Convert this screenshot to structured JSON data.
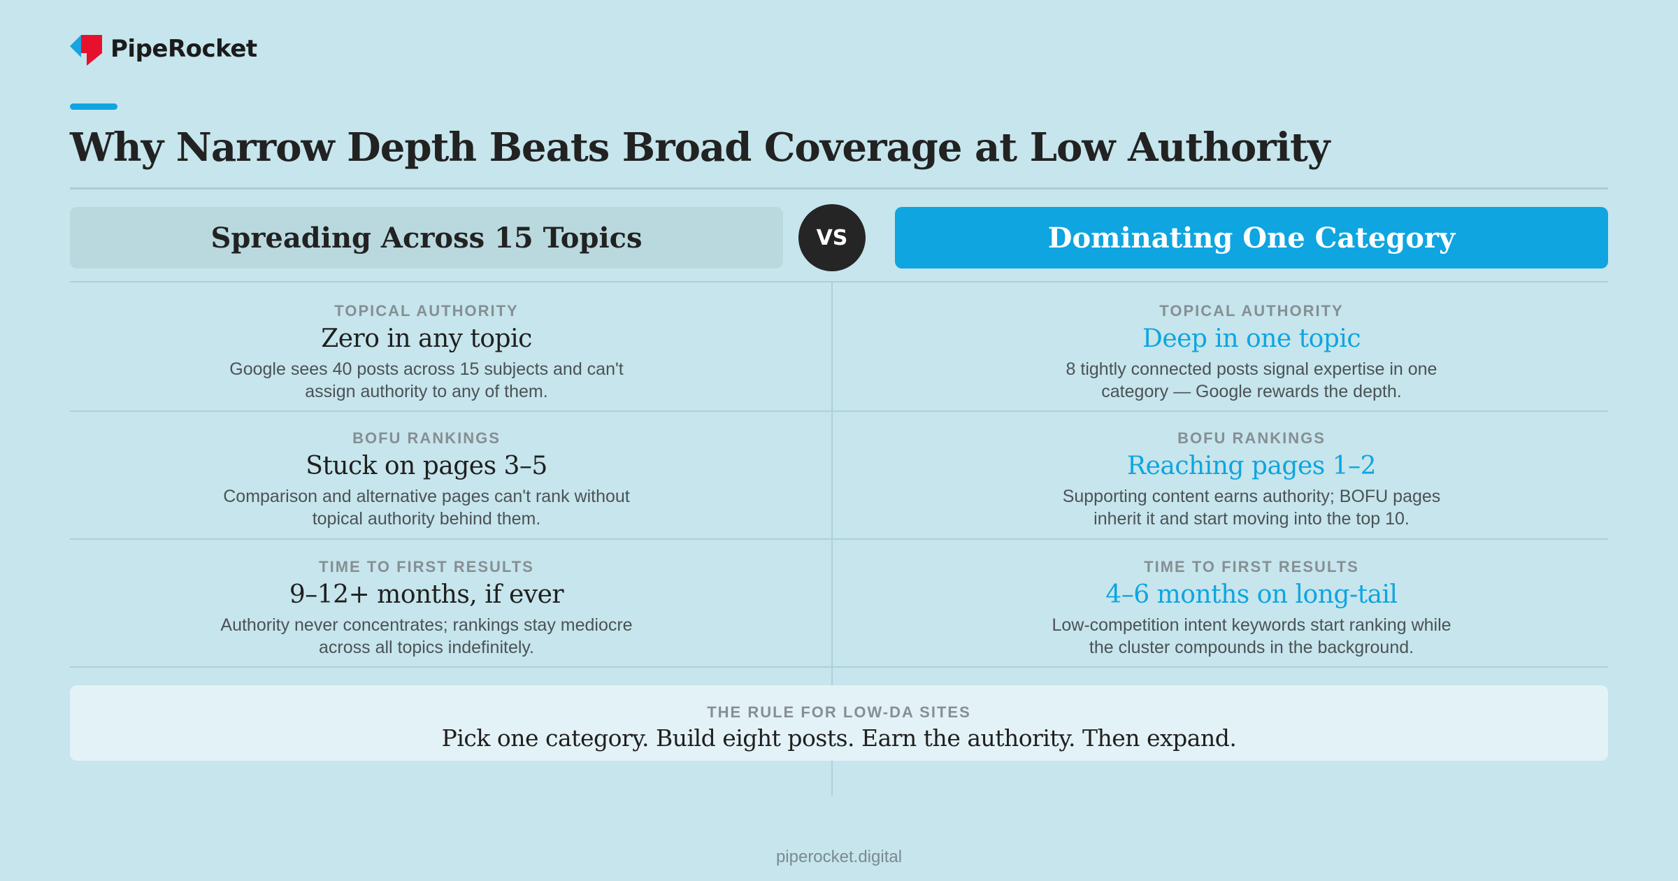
{
  "brand": {
    "name": "PipeRocket",
    "colors": {
      "accent": "#0ea5e0",
      "logo_red": "#e8112d",
      "logo_blue": "#1aa3df"
    }
  },
  "title": "Why Narrow Depth Beats Broad Coverage at Low Authority",
  "columns": {
    "left_header": "Spreading Across 15 Topics",
    "vs_label": "VS",
    "right_header": "Dominating One Category"
  },
  "rows": [
    {
      "label": "TOPICAL AUTHORITY",
      "left": {
        "value": "Zero in any topic",
        "desc": "Google sees 40 posts across 15 subjects and can't assign authority to any of them."
      },
      "right": {
        "value": "Deep in one topic",
        "desc": "8 tightly connected posts signal expertise in one category — Google rewards the depth."
      }
    },
    {
      "label": "BOFU RANKINGS",
      "left": {
        "value": "Stuck on pages 3–5",
        "desc": "Comparison and alternative pages can't rank without topical authority behind them."
      },
      "right": {
        "value": "Reaching pages 1–2",
        "desc": "Supporting content earns authority; BOFU pages inherit it and start moving into the top 10."
      }
    },
    {
      "label": "TIME TO FIRST RESULTS",
      "left": {
        "value": "9–12+ months, if ever",
        "desc": "Authority never concentrates; rankings stay mediocre across all topics indefinitely."
      },
      "right": {
        "value": "4–6 months on long-tail",
        "desc": "Low-competition intent keywords start ranking while the cluster compounds in the background."
      }
    }
  ],
  "rule": {
    "label": "THE RULE FOR LOW-DA SITES",
    "text": "Pick one category. Build eight posts. Earn the authority. Then expand."
  },
  "footer": "piperocket.digital"
}
